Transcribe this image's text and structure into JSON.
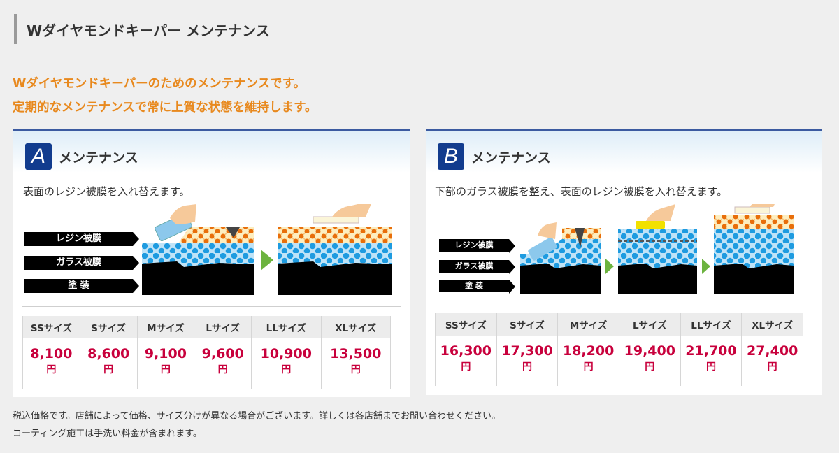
{
  "header": {
    "title": "Wダイヤモンドキーパー メンテナンス"
  },
  "lead": [
    "Wダイヤモンドキーパーのためのメンテナンスです。",
    "定期的なメンテナンスで常に上質な状態を維持します。"
  ],
  "panels": [
    {
      "badge": "A",
      "title": "メンテナンス",
      "description": "表面のレジン被膜を入れ替えます。",
      "layers": [
        "レジン被膜",
        "ガラス被膜",
        "塗 装"
      ],
      "sizes": [
        "SSサイズ",
        "Sサイズ",
        "Mサイズ",
        "Lサイズ",
        "LLサイズ",
        "XLサイズ"
      ],
      "prices": [
        "8,100",
        "8,600",
        "9,100",
        "9,600",
        "10,900",
        "13,500"
      ],
      "unit": "円"
    },
    {
      "badge": "B",
      "title": "メンテナンス",
      "description": "下部のガラス被膜を整え、表面のレジン被膜を入れ替えます。",
      "layers": [
        "レジン被膜",
        "ガラス被膜",
        "塗 装"
      ],
      "sizes": [
        "SSサイズ",
        "Sサイズ",
        "Mサイズ",
        "Lサイズ",
        "LLサイズ",
        "XLサイズ"
      ],
      "prices": [
        "16,300",
        "17,300",
        "18,200",
        "19,400",
        "21,700",
        "27,400"
      ],
      "unit": "円"
    }
  ],
  "notes": [
    "税込価格です。店舗によって価格、サイズ分けが異なる場合がございます。詳しくは各店舗までお問い合わせください。",
    "コーティング施工は手洗い料金が含まれます。"
  ],
  "colors": {
    "accent": "#e8891e",
    "price": "#c8003c",
    "badge": "#123c8e",
    "glass": "#1e9be0",
    "resin": "#e86e0a",
    "arrow": "#6cb33f"
  }
}
